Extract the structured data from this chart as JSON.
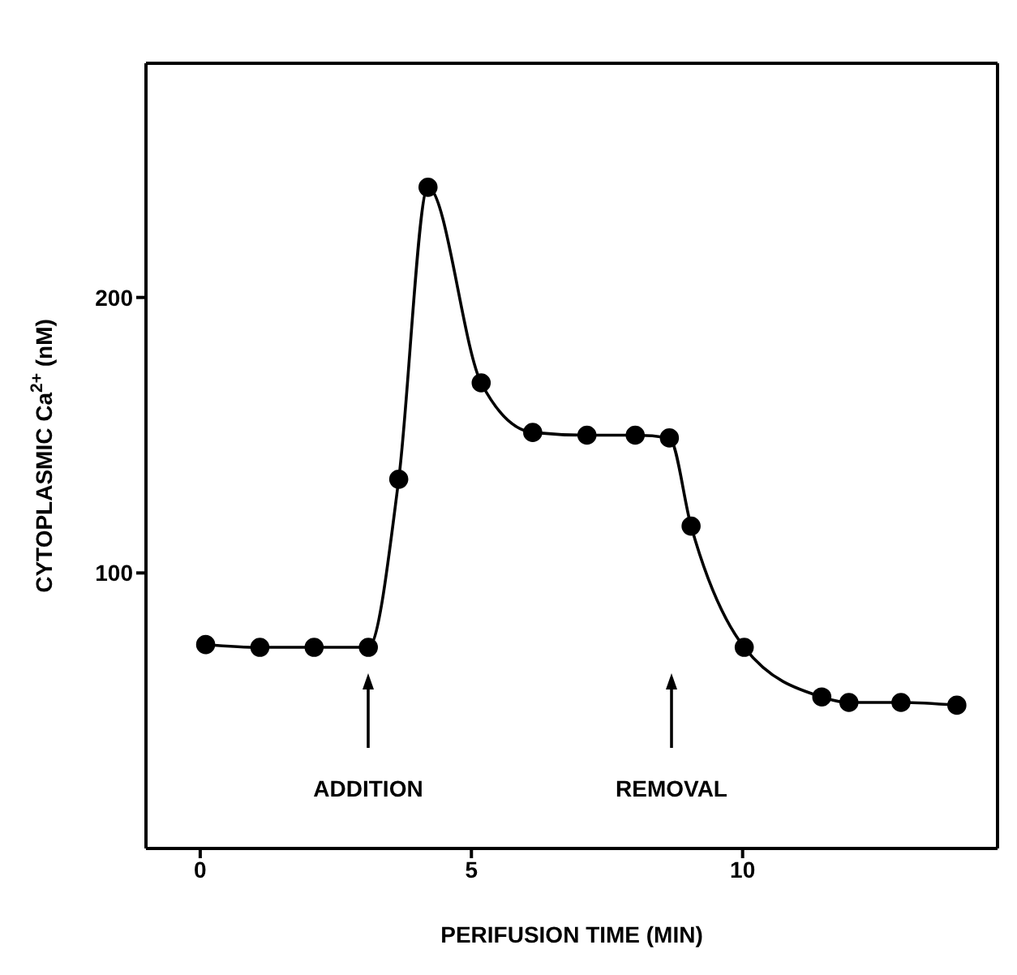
{
  "chart_data": {
    "type": "line",
    "xlabel": "PERIFUSION TIME (MIN)",
    "ylabel": "CYTOPLASMIC Ca$^{2+}$ (nM)",
    "x": [
      0.1,
      1.1,
      2.1,
      3.1,
      3.66,
      4.2,
      5.18,
      6.13,
      7.13,
      8.02,
      8.65,
      9.05,
      10.03,
      11.46,
      11.96,
      12.92,
      13.95
    ],
    "series": [
      {
        "color": "#000000",
        "values": [
          74,
          73,
          73,
          73,
          134,
          240,
          169,
          151,
          150,
          150,
          149,
          117,
          73,
          55,
          53,
          53,
          52
        ]
      }
    ],
    "xlim": [
      -1,
      14.7
    ],
    "xticks": [
      0,
      5,
      10
    ],
    "ylim": [
      0,
      285
    ],
    "yticks": [
      100,
      200
    ],
    "marker": "circle",
    "line_style": "solid",
    "grid": false,
    "annotations": [
      "ADDITION",
      "REMOVAL"
    ]
  }
}
